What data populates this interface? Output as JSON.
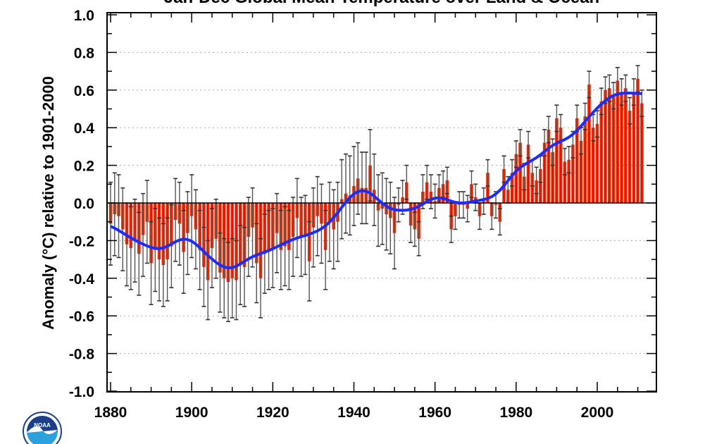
{
  "chart_data": {
    "type": "bar",
    "title": "Jan-Dec Global Mean Temperature over Land & Ocean",
    "xlabel": "",
    "ylabel": "Anomaly (°C) relative to 1901-2000",
    "xlim": [
      1880,
      2011
    ],
    "ylim": [
      -1.0,
      1.0
    ],
    "x_ticks": [
      "1880",
      "1900",
      "1920",
      "1940",
      "1960",
      "1980",
      "2000"
    ],
    "y_ticks": [
      "1.0",
      "0.8",
      "0.6",
      "0.4",
      "0.2",
      "0.0",
      "-0.2",
      "-0.4",
      "-0.6",
      "-0.8",
      "-1.0"
    ],
    "grid": "dotted horizontal at 0.2 intervals",
    "start_year": 1880,
    "values": [
      -0.11,
      -0.06,
      -0.07,
      -0.14,
      -0.22,
      -0.24,
      -0.2,
      -0.27,
      -0.17,
      -0.1,
      -0.32,
      -0.25,
      -0.3,
      -0.33,
      -0.3,
      -0.23,
      -0.09,
      -0.11,
      -0.26,
      -0.16,
      -0.07,
      -0.14,
      -0.25,
      -0.34,
      -0.41,
      -0.24,
      -0.19,
      -0.37,
      -0.4,
      -0.42,
      -0.4,
      -0.41,
      -0.33,
      -0.34,
      -0.18,
      -0.13,
      -0.32,
      -0.4,
      -0.27,
      -0.25,
      -0.24,
      -0.16,
      -0.25,
      -0.23,
      -0.25,
      -0.18,
      -0.08,
      -0.18,
      -0.17,
      -0.31,
      -0.13,
      -0.07,
      -0.11,
      -0.25,
      -0.1,
      -0.14,
      -0.1,
      0.02,
      0.05,
      0.04,
      0.09,
      0.13,
      0.08,
      0.08,
      0.2,
      0.07,
      -0.04,
      -0.03,
      -0.06,
      -0.08,
      -0.16,
      -0.01,
      0.03,
      0.11,
      -0.12,
      -0.14,
      -0.19,
      0.06,
      0.11,
      0.06,
      0.01,
      0.08,
      0.1,
      0.12,
      -0.14,
      -0.07,
      -0.01,
      -0.01,
      -0.03,
      0.1,
      0.03,
      -0.07,
      0.01,
      0.16,
      -0.07,
      -0.01,
      -0.1,
      0.18,
      0.07,
      0.16,
      0.26,
      0.32,
      0.14,
      0.31,
      0.16,
      0.12,
      0.18,
      0.32,
      0.39,
      0.27,
      0.45,
      0.4,
      0.22,
      0.23,
      0.31,
      0.45,
      0.33,
      0.46,
      0.63,
      0.4,
      0.42,
      0.54,
      0.6,
      0.61,
      0.57,
      0.65,
      0.59,
      0.61,
      0.49,
      0.59,
      0.66,
      0.53
    ],
    "error_by_period": [
      {
        "from": 1880,
        "to": 1900,
        "error": 0.22
      },
      {
        "from": 1901,
        "to": 1940,
        "error": 0.21
      },
      {
        "from": 1941,
        "to": 1950,
        "error": 0.19
      },
      {
        "from": 1951,
        "to": 1960,
        "error": 0.09
      },
      {
        "from": 1961,
        "to": 2011,
        "error": 0.07
      }
    ],
    "smoothed_line": "low-pass filtered anomaly",
    "colors": {
      "bars": "#ff2a00",
      "bar_core": "#c81400",
      "error_bars": "#555555",
      "smooth": "#1a2cff",
      "zero_line": "#000000"
    }
  },
  "logo": {
    "text": "NOAA",
    "colors": {
      "outer": "#ffffff",
      "top": "#1b3f8b",
      "bottom": "#2aa0dc"
    }
  }
}
